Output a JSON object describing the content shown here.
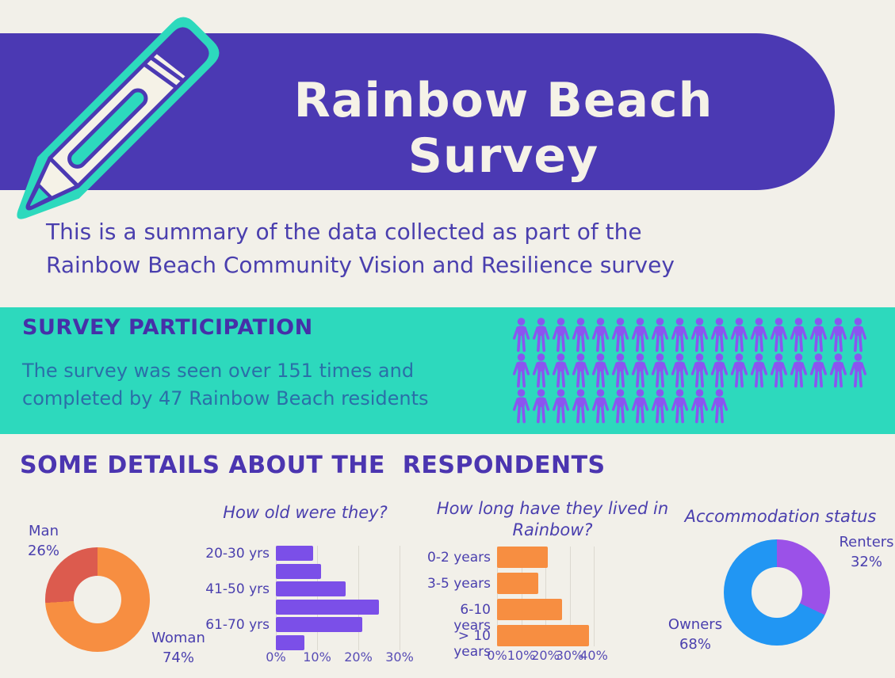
{
  "header": {
    "title_line1": "Rainbow Beach",
    "title_line2": "Survey",
    "bg_color": "#4B39B3",
    "text_color": "#F5F2E7",
    "icon": "pencil-icon"
  },
  "intro": {
    "line1": "This is a summary of the data collected as part of the",
    "line2": "Rainbow Beach Community Vision and Resilience survey",
    "text_color": "#4A3FAE"
  },
  "participation": {
    "heading": "SURVEY PARTICIPATION",
    "body_line1": "The survey was seen over 151 times and",
    "body_line2": "completed by 47 Rainbow Beach residents",
    "bg_color": "#2DD9BD",
    "heading_color": "#4630A8",
    "body_color": "#2A6FA8",
    "pictogram": {
      "icon": "person-icon",
      "color": "#8A55F0",
      "rows": [
        18,
        18,
        11
      ],
      "total": 47
    }
  },
  "details_heading": "SOME DETAILS ABOUT THE  RESPONDENTS",
  "chart_data": [
    {
      "type": "pie",
      "donut": true,
      "title": "",
      "labels": [
        "Man",
        "Woman"
      ],
      "values": [
        26,
        74
      ],
      "value_labels": [
        "26%",
        "74%"
      ],
      "colors": [
        "#DC5B4E",
        "#F78E41"
      ],
      "clockwise_from_top_order": [
        1,
        0
      ],
      "legend_position": "outside"
    },
    {
      "type": "bar",
      "title": "How old were they?",
      "orientation": "horizontal",
      "categories": [
        "20-30 yrs",
        "",
        "41-50 yrs",
        "",
        "61-70 yrs",
        ""
      ],
      "values": [
        9,
        11,
        17,
        25,
        21,
        7
      ],
      "bar_color": "#7B4FE8",
      "xticks": [
        "0%",
        "10%",
        "20%",
        "30%"
      ],
      "xlim": [
        0,
        32
      ],
      "grid": true
    },
    {
      "type": "bar",
      "title": "How long have they lived in Rainbow?",
      "title_lines": [
        "How long have they lived in",
        "Rainbow?"
      ],
      "orientation": "horizontal",
      "categories": [
        "0-2 years",
        "3-5 years",
        "6-10 years",
        "> 10 years"
      ],
      "values": [
        21,
        17,
        27,
        38
      ],
      "bar_color": "#F78E41",
      "xticks": [
        "0%",
        "10%",
        "20%",
        "30%",
        "40%"
      ],
      "xlim": [
        0,
        42
      ],
      "grid": true
    },
    {
      "type": "pie",
      "donut": true,
      "title": "Accommodation status",
      "labels": [
        "Renters",
        "Owners"
      ],
      "values": [
        32,
        68
      ],
      "value_labels": [
        "32%",
        "68%"
      ],
      "colors": [
        "#9B51E8",
        "#2196F3"
      ],
      "clockwise_from_top_order": [
        0,
        1
      ],
      "legend_position": "outside"
    }
  ]
}
